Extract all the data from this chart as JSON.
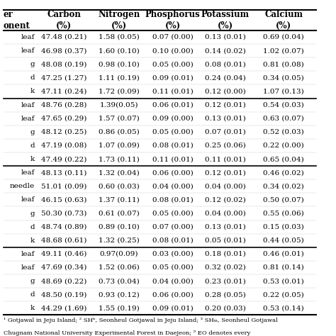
{
  "row_labels": [
    "leaf",
    "leaf",
    "g",
    "d",
    "k",
    "leaf",
    "leaf",
    "g",
    "d",
    "k",
    "leaf",
    "needle",
    "leaf",
    "g",
    "d",
    "k",
    "leaf",
    "leaf",
    "g",
    "d",
    "k"
  ],
  "carbon": [
    "47.48 (0.21)",
    "46.98 (0.37)",
    "48.08 (0.19)",
    "47.25 (1.27)",
    "47.11 (0.24)",
    "48.76 (0.28)",
    "47.65 (0.29)",
    "48.12 (0.25)",
    "47.19 (0.08)",
    "47.49 (0.22)",
    "48.13 (0.11)",
    "51.01 (0.09)",
    "46.15 (0.63)",
    "50.30 (0.73)",
    "48.74 (0.89)",
    "48.68 (0.61)",
    "49.11 (0.46)",
    "47.69 (0.34)",
    "48.69 (0.22)",
    "48.50 (0.19)",
    "44.29 (1.69)"
  ],
  "nitrogen": [
    "1.58 (0.05)",
    "1.60 (0.10)",
    "0.98 (0.10)",
    "1.11 (0.19)",
    "1.72 (0.09)",
    "1.39(0.05)",
    "1.57 (0.07)",
    "0.86 (0.05)",
    "1.07 (0.09)",
    "1.73 (0.11)",
    "1.32 (0.04)",
    "0.60 (0.03)",
    "1.37 (0.11)",
    "0.61 (0.07)",
    "0.89 (0.10)",
    "1.32 (0.25)",
    "0.97(0.09)",
    "1.52 (0.06)",
    "0.73 (0.04)",
    "0.93 (0.12)",
    "1.55 (0.19)"
  ],
  "phosphorus": [
    "0.07 (0.00)",
    "0.10 (0.00)",
    "0.05 (0.00)",
    "0.09 (0.01)",
    "0.11 (0.01)",
    "0.06 (0.01)",
    "0.09 (0.00)",
    "0.05 (0.00)",
    "0.08 (0.01)",
    "0.11 (0.01)",
    "0.06 (0.00)",
    "0.04 (0.00)",
    "0.08 (0.01)",
    "0.05 (0.00)",
    "0.07 (0.00)",
    "0.08 (0.01)",
    "0.03 (0.00)",
    "0.05 (0.00)",
    "0.04 (0.00)",
    "0.06 (0.00)",
    "0.09 (0.01)"
  ],
  "potassium": [
    "0.13 (0.01)",
    "0.14 (0.02)",
    "0.08 (0.01)",
    "0.24 (0.04)",
    "0.12 (0.00)",
    "0.12 (0.01)",
    "0.13 (0.01)",
    "0.07 (0.01)",
    "0.25 (0.06)",
    "0.11 (0.01)",
    "0.12 (0.01)",
    "0.04 (0.00)",
    "0.12 (0.02)",
    "0.04 (0.00)",
    "0.13 (0.01)",
    "0.05 (0.01)",
    "0.18 (0.01)",
    "0.32 (0.02)",
    "0.23 (0.01)",
    "0.28 (0.05)",
    "0.20 (0.03)"
  ],
  "calcium": [
    "0.69 (0.04)",
    "1.02 (0.07)",
    "0.81 (0.08)",
    "0.34 (0.05)",
    "1.07 (0.13)",
    "0.54 (0.03)",
    "0.63 (0.07)",
    "0.52 (0.03)",
    "0.22 (0.00)",
    "0.65 (0.04)",
    "0.46 (0.02)",
    "0.34 (0.02)",
    "0.50 (0.07)",
    "0.55 (0.06)",
    "0.15 (0.03)",
    "0.44 (0.05)",
    "0.46 (0.01)",
    "0.81 (0.14)",
    "0.53 (0.01)",
    "0.22 (0.05)",
    "0.53 (0.14)"
  ],
  "group_sizes": [
    5,
    5,
    6,
    5
  ],
  "footer_line1": "¹ Gotjawal in Jeju Island; ² SHᵇ, Seonheul Gotjawal in Jeju Island; ³ SHₘ, Seonheul Gotjawal",
  "footer_line2": "Chugnam National University Experimental Forest in Daejeon; ⁵ EO denotes every",
  "bg_color": "#ffffff",
  "text_color": "#000000",
  "font_size": 7.5,
  "header_font_size": 8.5
}
